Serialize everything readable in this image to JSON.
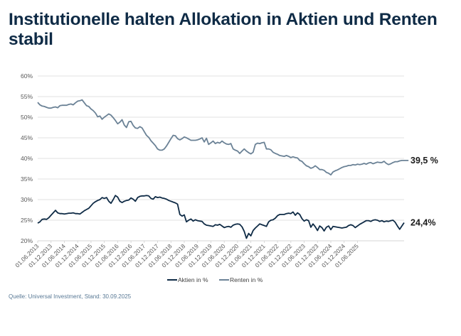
{
  "title": "Institutionelle halten Allokation in Aktien und Renten stabil",
  "source": "Quelle: Universal Investment, Stand: 30.09.2025",
  "chart_data": {
    "type": "line",
    "title": "Institutionelle halten Allokation in Aktien und Renten stabil",
    "xlabel": "",
    "ylabel": "",
    "ylim": [
      20,
      60
    ],
    "yticks": [
      20,
      25,
      30,
      35,
      40,
      45,
      50,
      55,
      60
    ],
    "ytick_labels": [
      "20%",
      "25%",
      "30%",
      "35%",
      "40%",
      "45%",
      "50%",
      "55%",
      "60%"
    ],
    "grid": true,
    "legend_position": "bottom",
    "x_tick_labels": [
      "01.06.2013",
      "01.12.2013",
      "01.06.2014",
      "01.12.2014",
      "01.06.2015",
      "01.12.2015",
      "01.06.2016",
      "01.12.2016",
      "01.06.2017",
      "01.12.2017",
      "01.06.2018",
      "01.12.2018",
      "01.06.2019",
      "01.12.2019",
      "01.06.2020",
      "01.12.2020",
      "01.06.2021",
      "01.12.2021",
      "01.06.2022",
      "01.12.2022",
      "01.06.2023",
      "01.12.2023",
      "01.06.2024",
      "01.12.2024",
      "01.06.2025"
    ],
    "x_start": "2013-06",
    "x_end": "2025-09",
    "series": [
      {
        "name": "Aktien in %",
        "color": "#0f2b46",
        "end_label": "24,4%",
        "values": [
          24.3,
          24.6,
          25.2,
          25.3,
          25.2,
          25.6,
          26.2,
          26.8,
          27.4,
          26.8,
          26.6,
          26.6,
          26.5,
          26.6,
          26.7,
          26.7,
          26.8,
          26.6,
          26.6,
          26.5,
          26.9,
          27.3,
          27.6,
          27.9,
          28.5,
          29.1,
          29.5,
          29.8,
          30.0,
          30.5,
          30.3,
          30.5,
          29.6,
          29.1,
          30.0,
          31.0,
          30.6,
          29.6,
          29.3,
          29.6,
          29.8,
          29.9,
          30.4,
          30.1,
          29.6,
          30.5,
          30.8,
          30.9,
          30.9,
          31.0,
          30.9,
          30.3,
          30.1,
          30.7,
          30.5,
          30.6,
          30.4,
          30.3,
          30.1,
          29.8,
          29.6,
          29.4,
          29.2,
          28.9,
          26.4,
          26.0,
          26.3,
          24.6,
          25.0,
          25.3,
          24.8,
          25.1,
          24.9,
          24.8,
          24.7,
          24.1,
          23.8,
          23.7,
          23.6,
          23.5,
          23.9,
          23.8,
          24.0,
          23.6,
          23.2,
          23.4,
          23.5,
          23.3,
          23.8,
          24.0,
          24.1,
          24.0,
          23.4,
          22.3,
          20.6,
          21.8,
          21.2,
          22.5,
          23.1,
          23.6,
          24.1,
          23.9,
          23.7,
          23.5,
          24.6,
          25.0,
          25.1,
          25.5,
          26.1,
          26.4,
          26.4,
          26.4,
          26.6,
          26.7,
          26.6,
          27.0,
          26.2,
          26.8,
          26.4,
          25.4,
          24.8,
          25.1,
          24.9,
          23.3,
          24.1,
          23.4,
          22.5,
          23.6,
          23.2,
          22.4,
          23.3,
          23.6,
          22.7,
          23.5,
          23.4,
          23.3,
          23.2,
          23.1,
          23.2,
          23.3,
          23.7,
          23.9,
          23.7,
          23.2,
          23.6,
          24.0,
          24.3,
          24.6,
          24.9,
          24.9,
          24.7,
          25.0,
          25.1,
          25.0,
          24.7,
          24.9,
          24.6,
          24.8,
          24.7,
          24.9,
          25.0,
          24.5,
          23.6,
          22.8,
          23.6,
          24.4
        ]
      },
      {
        "name": "Renten in %",
        "color": "#6b8296",
        "end_label": "39,5 %",
        "values": [
          53.6,
          53.0,
          52.7,
          52.6,
          52.4,
          52.2,
          52.2,
          52.4,
          52.5,
          52.3,
          52.8,
          52.9,
          52.9,
          52.9,
          53.1,
          53.2,
          53.0,
          53.5,
          53.9,
          54.0,
          54.2,
          53.5,
          52.8,
          52.6,
          52.0,
          51.6,
          51.0,
          50.1,
          50.3,
          49.5,
          50.0,
          50.4,
          50.8,
          50.5,
          49.9,
          49.2,
          48.4,
          48.8,
          49.4,
          48.1,
          47.5,
          48.9,
          49.0,
          48.0,
          47.4,
          47.3,
          47.7,
          47.4,
          46.5,
          45.6,
          45.1,
          44.3,
          43.7,
          43.1,
          42.3,
          42.0,
          42.0,
          42.3,
          43.0,
          43.9,
          44.8,
          45.6,
          45.5,
          44.8,
          44.5,
          44.8,
          45.2,
          45.0,
          44.7,
          44.4,
          44.4,
          44.4,
          44.5,
          44.7,
          45.0,
          44.0,
          44.9,
          43.4,
          43.8,
          44.2,
          43.6,
          43.9,
          43.7,
          44.2,
          43.8,
          43.5,
          43.4,
          43.6,
          42.3,
          42.0,
          41.8,
          41.2,
          41.8,
          42.3,
          41.8,
          41.4,
          41.1,
          41.5,
          43.4,
          43.7,
          43.6,
          43.8,
          43.9,
          42.3,
          42.3,
          42.1,
          41.5,
          41.2,
          41.0,
          40.7,
          40.6,
          40.5,
          40.7,
          40.5,
          40.2,
          40.4,
          40.2,
          40.1,
          39.5,
          39.3,
          38.7,
          38.2,
          38.0,
          37.6,
          37.8,
          38.2,
          37.8,
          37.3,
          37.3,
          37.1,
          36.6,
          36.4,
          36.0,
          36.7,
          37.0,
          37.2,
          37.5,
          37.8,
          38.0,
          38.1,
          38.3,
          38.3,
          38.5,
          38.4,
          38.6,
          38.5,
          38.6,
          38.8,
          38.6,
          38.9,
          39.0,
          38.7,
          38.9,
          39.1,
          39.0,
          39.0,
          39.3,
          38.8,
          38.5,
          38.7,
          39.0,
          39.2,
          39.2,
          39.4,
          39.5,
          39.5,
          39.5,
          39.5
        ]
      }
    ]
  }
}
